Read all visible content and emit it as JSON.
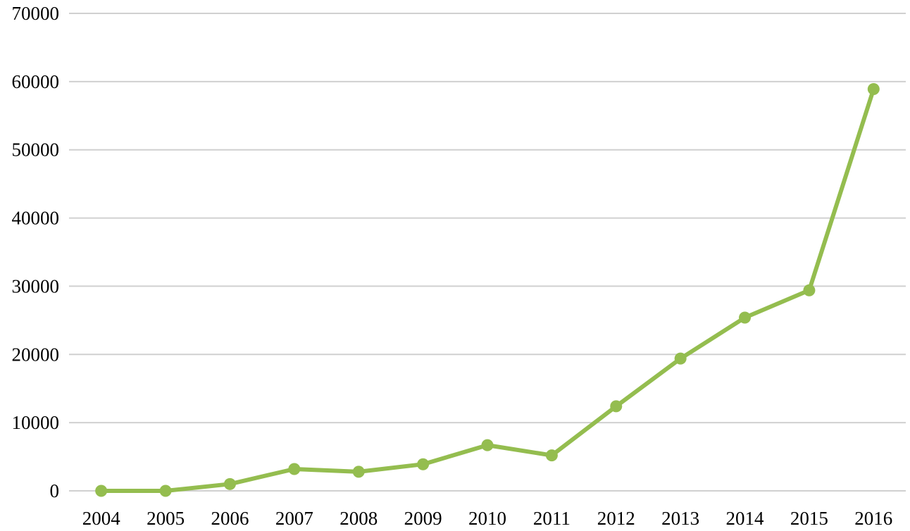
{
  "chart_data": {
    "type": "line",
    "categories": [
      "2004",
      "2005",
      "2006",
      "2007",
      "2008",
      "2009",
      "2010",
      "2011",
      "2012",
      "2013",
      "2014",
      "2015",
      "2016"
    ],
    "series": [
      {
        "values": [
          0,
          0,
          1000,
          3200,
          2800,
          3900,
          6700,
          5200,
          12400,
          19400,
          25400,
          29400,
          58900
        ]
      }
    ],
    "ylim": [
      0,
      70000
    ],
    "yticks": [
      0,
      10000,
      20000,
      30000,
      40000,
      50000,
      60000,
      70000
    ],
    "ytick_labels": [
      "0",
      "10000",
      "20000",
      "30000",
      "40000",
      "50000",
      "60000",
      "70000"
    ],
    "grid": true,
    "legend": "none",
    "title": "",
    "xlabel": "",
    "ylabel": "",
    "colors": {
      "series": "#94bd4f",
      "grid": "#d0d0d0",
      "text": "#000000"
    }
  }
}
